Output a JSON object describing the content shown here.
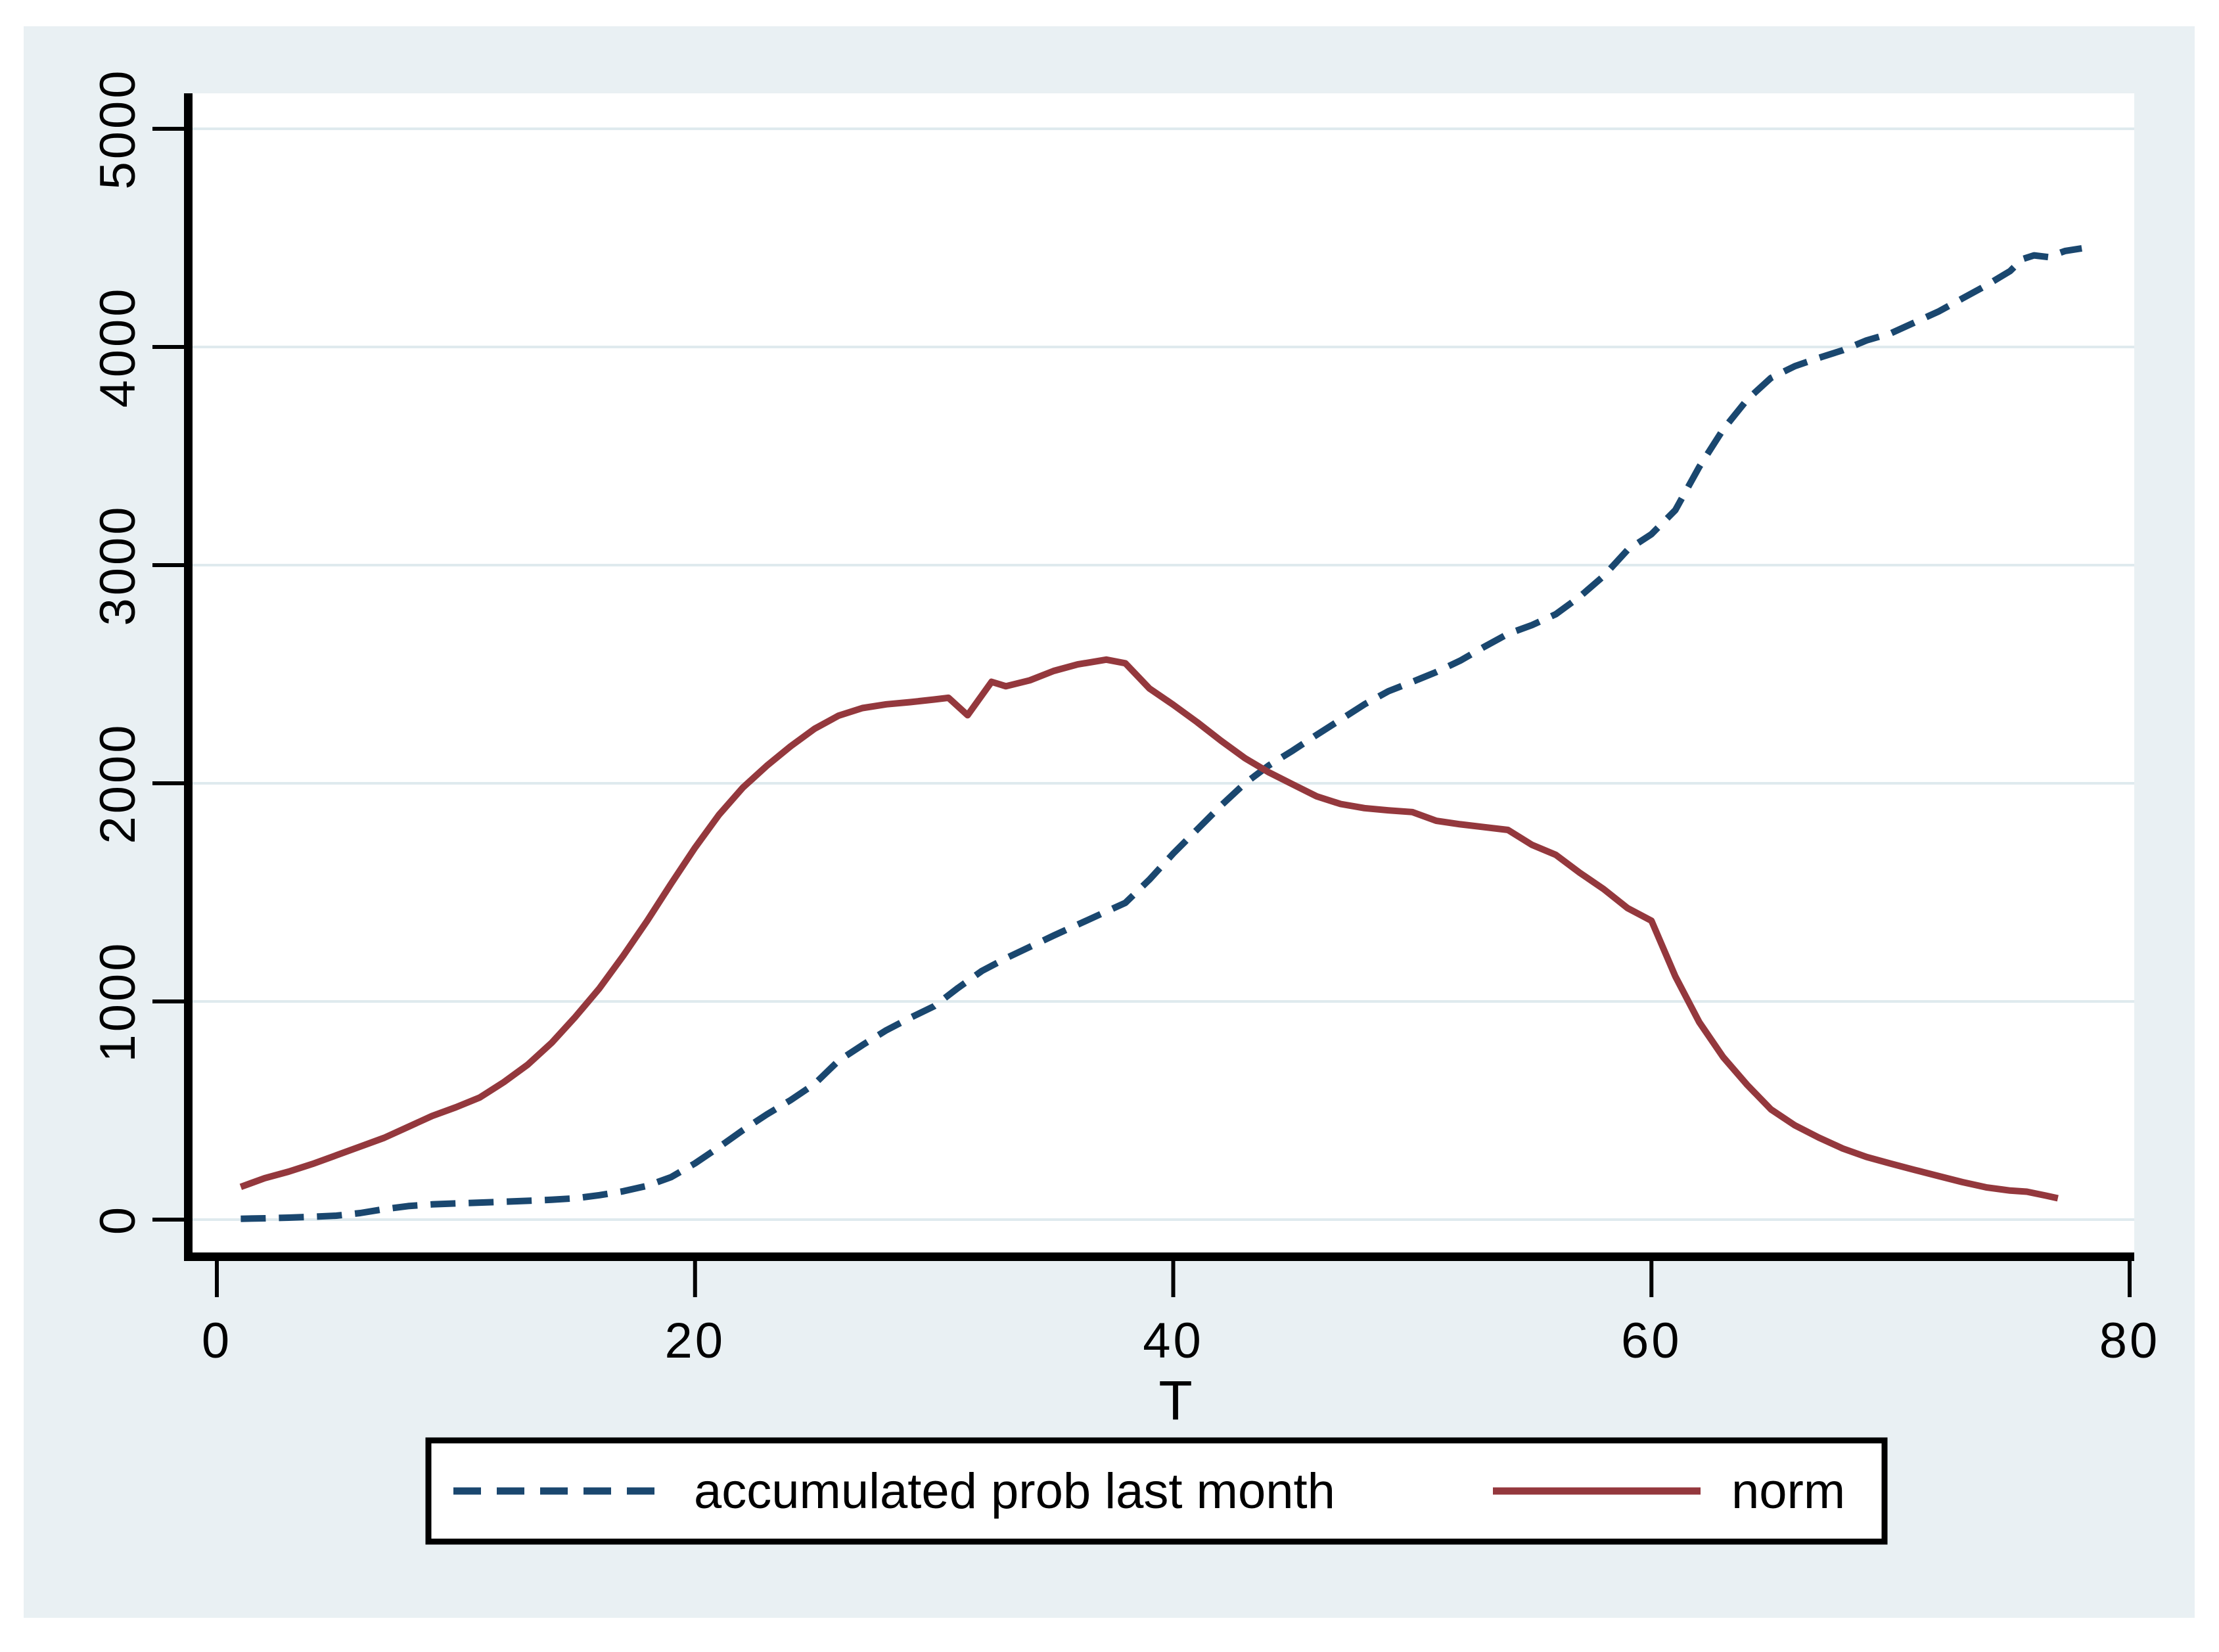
{
  "figure": {
    "background": "#e9f0f3",
    "plot_background": "#ffffff",
    "axis_color": "#000000",
    "gridline_color": "#dfeaee"
  },
  "chart_data": {
    "type": "line",
    "title": "",
    "xlabel": "T",
    "ylabel": "",
    "xlim": [
      0,
      80
    ],
    "ylim": [
      0,
      5000
    ],
    "x_ticks": [
      0,
      20,
      40,
      60,
      80
    ],
    "y_ticks": [
      0,
      1000,
      2000,
      3000,
      4000,
      5000
    ],
    "grid": "horizontal",
    "legend_position": "bottom",
    "series": [
      {
        "name": "accumulated prob last month",
        "color": "#1a476f",
        "style": "dashed",
        "points": [
          [
            1,
            4
          ],
          [
            2,
            6
          ],
          [
            3,
            9
          ],
          [
            4,
            13
          ],
          [
            5,
            18
          ],
          [
            6,
            30
          ],
          [
            7,
            48
          ],
          [
            8,
            62
          ],
          [
            9,
            70
          ],
          [
            10,
            74
          ],
          [
            11,
            78
          ],
          [
            12,
            82
          ],
          [
            13,
            86
          ],
          [
            14,
            91
          ],
          [
            15,
            98
          ],
          [
            16,
            112
          ],
          [
            17,
            130
          ],
          [
            18,
            155
          ],
          [
            19,
            195
          ],
          [
            20,
            258
          ],
          [
            21,
            332
          ],
          [
            22,
            410
          ],
          [
            23,
            482
          ],
          [
            24,
            548
          ],
          [
            25,
            622
          ],
          [
            26,
            728
          ],
          [
            27,
            800
          ],
          [
            28,
            868
          ],
          [
            29,
            925
          ],
          [
            30,
            978
          ],
          [
            31,
            1062
          ],
          [
            32,
            1140
          ],
          [
            33,
            1198
          ],
          [
            34,
            1250
          ],
          [
            35,
            1302
          ],
          [
            36,
            1352
          ],
          [
            37,
            1402
          ],
          [
            38,
            1452
          ],
          [
            39,
            1558
          ],
          [
            40,
            1678
          ],
          [
            41,
            1788
          ],
          [
            42,
            1898
          ],
          [
            43,
            2000
          ],
          [
            44,
            2082
          ],
          [
            45,
            2150
          ],
          [
            46,
            2222
          ],
          [
            47,
            2292
          ],
          [
            48,
            2362
          ],
          [
            49,
            2422
          ],
          [
            50,
            2465
          ],
          [
            51,
            2510
          ],
          [
            52,
            2562
          ],
          [
            53,
            2625
          ],
          [
            54,
            2685
          ],
          [
            55,
            2725
          ],
          [
            56,
            2775
          ],
          [
            57,
            2855
          ],
          [
            58,
            2950
          ],
          [
            59,
            3070
          ],
          [
            60,
            3142
          ],
          [
            61,
            3252
          ],
          [
            62,
            3450
          ],
          [
            63,
            3622
          ],
          [
            64,
            3758
          ],
          [
            65,
            3858
          ],
          [
            66,
            3912
          ],
          [
            67,
            3950
          ],
          [
            68,
            3985
          ],
          [
            69,
            4030
          ],
          [
            70,
            4062
          ],
          [
            71,
            4112
          ],
          [
            72,
            4162
          ],
          [
            73,
            4222
          ],
          [
            74,
            4282
          ],
          [
            75,
            4348
          ],
          [
            75.5,
            4402
          ],
          [
            76,
            4420
          ],
          [
            76.6,
            4412
          ],
          [
            77.3,
            4440
          ],
          [
            78,
            4452
          ]
        ]
      },
      {
        "name": "norm",
        "color": "#94383d",
        "style": "solid",
        "points": [
          [
            1,
            150
          ],
          [
            2,
            190
          ],
          [
            3,
            220
          ],
          [
            4,
            255
          ],
          [
            5,
            295
          ],
          [
            6,
            335
          ],
          [
            7,
            375
          ],
          [
            8,
            425
          ],
          [
            9,
            475
          ],
          [
            10,
            515
          ],
          [
            11,
            560
          ],
          [
            12,
            630
          ],
          [
            13,
            710
          ],
          [
            14,
            810
          ],
          [
            15,
            930
          ],
          [
            16,
            1060
          ],
          [
            17,
            1210
          ],
          [
            18,
            1370
          ],
          [
            19,
            1540
          ],
          [
            20,
            1705
          ],
          [
            21,
            1855
          ],
          [
            22,
            1980
          ],
          [
            23,
            2080
          ],
          [
            24,
            2170
          ],
          [
            25,
            2250
          ],
          [
            26,
            2310
          ],
          [
            27,
            2345
          ],
          [
            28,
            2362
          ],
          [
            29,
            2372
          ],
          [
            30,
            2384
          ],
          [
            30.6,
            2392
          ],
          [
            31.4,
            2312
          ],
          [
            32.4,
            2465
          ],
          [
            33,
            2445
          ],
          [
            34,
            2472
          ],
          [
            35,
            2515
          ],
          [
            36,
            2545
          ],
          [
            37.2,
            2567
          ],
          [
            38,
            2550
          ],
          [
            39,
            2435
          ],
          [
            40,
            2360
          ],
          [
            41,
            2280
          ],
          [
            42,
            2195
          ],
          [
            43,
            2115
          ],
          [
            44,
            2050
          ],
          [
            45,
            1995
          ],
          [
            46,
            1940
          ],
          [
            47,
            1905
          ],
          [
            48,
            1886
          ],
          [
            49,
            1876
          ],
          [
            50,
            1868
          ],
          [
            51,
            1828
          ],
          [
            52,
            1812
          ],
          [
            53,
            1799
          ],
          [
            54,
            1786
          ],
          [
            55,
            1718
          ],
          [
            56,
            1672
          ],
          [
            57,
            1590
          ],
          [
            58,
            1515
          ],
          [
            59,
            1428
          ],
          [
            60,
            1370
          ],
          [
            61,
            1115
          ],
          [
            62,
            905
          ],
          [
            63,
            745
          ],
          [
            64,
            618
          ],
          [
            65,
            505
          ],
          [
            66,
            432
          ],
          [
            67,
            376
          ],
          [
            68,
            326
          ],
          [
            69,
            287
          ],
          [
            70,
            257
          ],
          [
            71,
            228
          ],
          [
            72,
            200
          ],
          [
            73,
            172
          ],
          [
            74,
            148
          ],
          [
            75,
            133
          ],
          [
            75.7,
            128
          ],
          [
            76.5,
            110
          ],
          [
            77,
            98
          ]
        ]
      }
    ]
  }
}
